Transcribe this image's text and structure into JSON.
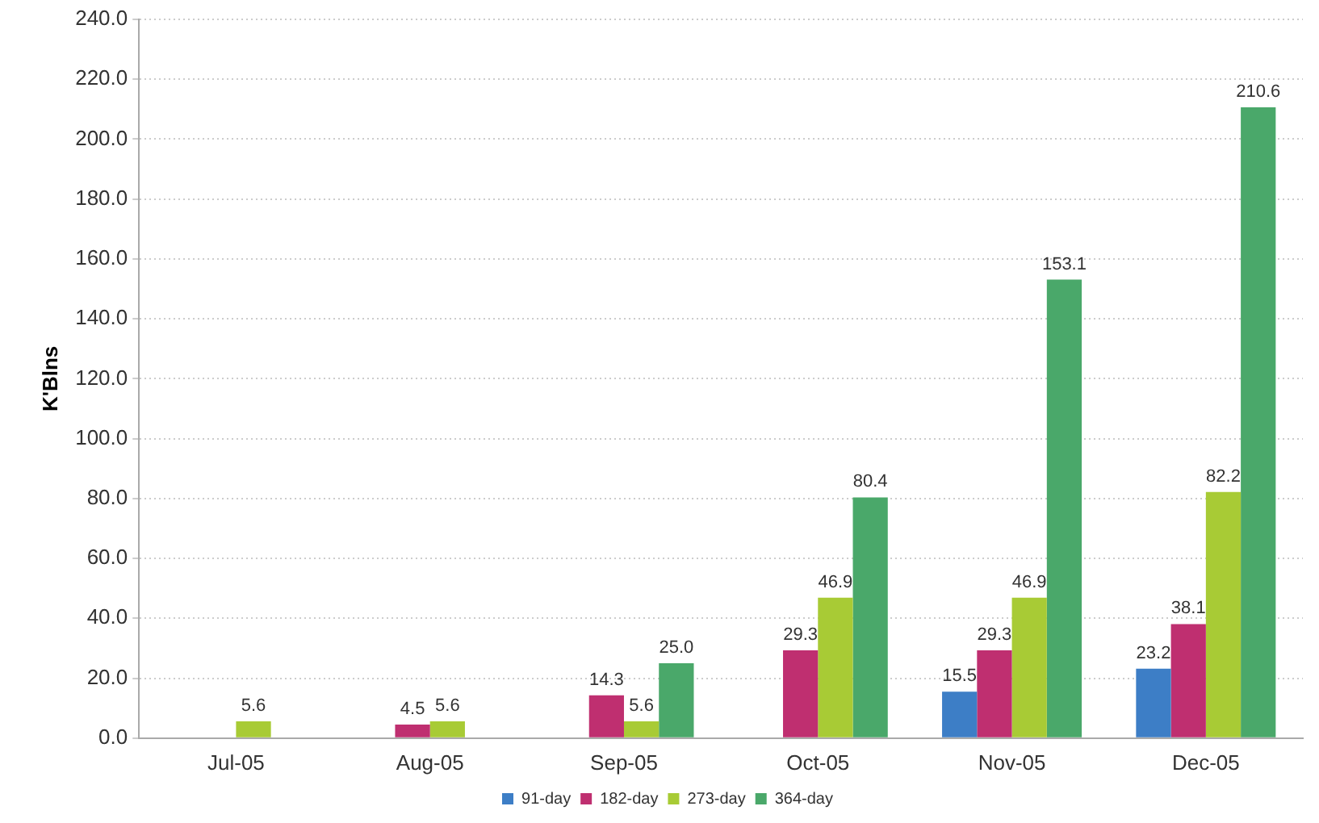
{
  "chart_data": {
    "type": "bar",
    "ylabel": "K'Blns",
    "categories": [
      "Jul-05",
      "Aug-05",
      "Sep-05",
      "Oct-05",
      "Nov-05",
      "Dec-05"
    ],
    "series": [
      {
        "name": "91-day",
        "color": "#3d7ec6",
        "values": [
          null,
          null,
          null,
          null,
          15.5,
          23.2
        ],
        "value_labels": [
          null,
          null,
          null,
          null,
          "15.5",
          "23.2"
        ]
      },
      {
        "name": "182-day",
        "color": "#bf2f70",
        "values": [
          null,
          4.5,
          14.3,
          29.3,
          29.3,
          38.1
        ],
        "value_labels": [
          null,
          "4.5",
          "14.3",
          "29.3",
          "29.3",
          "38.1"
        ]
      },
      {
        "name": "273-day",
        "color": "#a8cb35",
        "values": [
          5.6,
          5.6,
          5.6,
          46.9,
          46.9,
          82.2
        ],
        "value_labels": [
          "5.6",
          "5.6",
          "5.6",
          "46.9",
          "46.9",
          "82.2"
        ]
      },
      {
        "name": "364-day",
        "color": "#4aa86a",
        "values": [
          null,
          null,
          25.0,
          80.4,
          153.1,
          210.6
        ],
        "value_labels": [
          null,
          null,
          "25.0",
          "80.4",
          "153.1",
          "210.6"
        ]
      }
    ],
    "ylim": [
      0,
      240
    ],
    "yticks": [
      {
        "value": 0,
        "label": "0.0"
      },
      {
        "value": 20,
        "label": "20.0"
      },
      {
        "value": 40,
        "label": "40.0"
      },
      {
        "value": 60,
        "label": "60.0"
      },
      {
        "value": 80,
        "label": "80.0"
      },
      {
        "value": 100,
        "label": "100.0"
      },
      {
        "value": 120,
        "label": "120.0"
      },
      {
        "value": 140,
        "label": "140.0"
      },
      {
        "value": 160,
        "label": "160.0"
      },
      {
        "value": 180,
        "label": "180.0"
      },
      {
        "value": 200,
        "label": "200.0"
      },
      {
        "value": 220,
        "label": "220.0"
      },
      {
        "value": 240,
        "label": "240.0"
      }
    ],
    "grid": "y",
    "legend": "bottom"
  }
}
